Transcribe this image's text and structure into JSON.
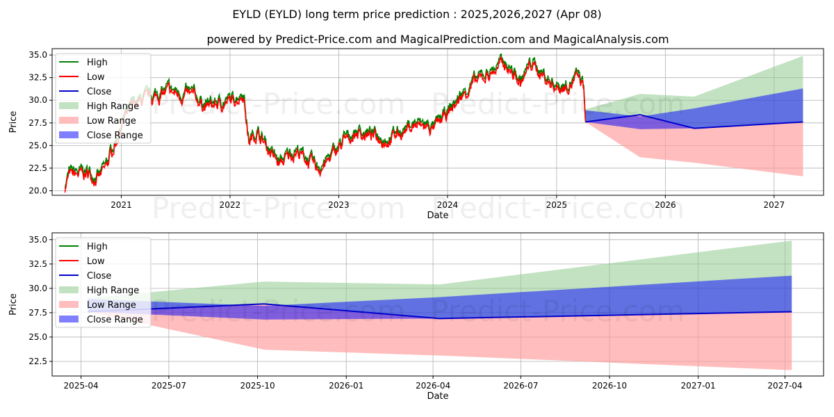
{
  "title": "EYLD (EYLD) long term price prediction : 2025,2026,2027 (Apr 08)",
  "subtitle": "powered by Predict-Price.com and MagicalPrediction.com and MagicalAnalysis.com",
  "watermark": "Predict-Price.com",
  "colors": {
    "high": "#008000",
    "low": "#ff0000",
    "close": "#0000cc",
    "high_range": "#8fca8f",
    "low_range": "#ff9a9a",
    "close_range": "#0000ff"
  },
  "chart_data": [
    {
      "type": "line",
      "title": "",
      "xlabel": "Date",
      "ylabel": "Price",
      "ylim": [
        19.5,
        35.7
      ],
      "xticks": [
        "2021",
        "2022",
        "2023",
        "2024",
        "2025",
        "2026",
        "2027"
      ],
      "yticks": [
        "20.0",
        "22.5",
        "25.0",
        "27.5",
        "30.0",
        "32.5",
        "35.0"
      ],
      "legend": [
        "High",
        "Low",
        "Close",
        "High Range",
        "Low Range",
        "Close Range"
      ],
      "legend_position": "top-left",
      "history_keypoints": [
        [
          "2020-06-25",
          20.5
        ],
        [
          "2020-07-10",
          21.8
        ],
        [
          "2020-09-15",
          22.0
        ],
        [
          "2020-10-20",
          21.5
        ],
        [
          "2020-11-10",
          22.6
        ],
        [
          "2021-01-10",
          28.0
        ],
        [
          "2021-02-15",
          29.6
        ],
        [
          "2021-06-01",
          31.0
        ],
        [
          "2021-09-01",
          30.5
        ],
        [
          "2021-10-15",
          29.4
        ],
        [
          "2022-01-10",
          30.0
        ],
        [
          "2022-02-15",
          31.0
        ],
        [
          "2022-03-05",
          25.5
        ],
        [
          "2022-04-01",
          26.6
        ],
        [
          "2022-06-15",
          23.0
        ],
        [
          "2022-08-10",
          24.6
        ],
        [
          "2022-10-20",
          22.5
        ],
        [
          "2022-11-20",
          23.2
        ],
        [
          "2023-01-15",
          25.4
        ],
        [
          "2023-03-01",
          26.6
        ],
        [
          "2023-06-15",
          25.8
        ],
        [
          "2023-09-10",
          27.4
        ],
        [
          "2023-11-20",
          27.0
        ],
        [
          "2024-01-15",
          29.2
        ],
        [
          "2024-03-15",
          31.6
        ],
        [
          "2024-05-15",
          33.0
        ],
        [
          "2024-07-10",
          34.2
        ],
        [
          "2024-09-01",
          32.0
        ],
        [
          "2024-10-10",
          34.2
        ],
        [
          "2024-12-10",
          32.0
        ],
        [
          "2025-01-20",
          31.5
        ],
        [
          "2025-03-15",
          32.6
        ],
        [
          "2025-04-02",
          31.5
        ],
        [
          "2025-04-08",
          27.6
        ]
      ],
      "forecast": {
        "dates": [
          "2025-04-08",
          "2025-10-08",
          "2026-04-08",
          "2027-04-08"
        ],
        "close": [
          27.6,
          28.4,
          26.9,
          27.6
        ],
        "high_range_upper": [
          29.0,
          30.7,
          30.4,
          34.9
        ],
        "close_range_upper": [
          28.9,
          28.2,
          29.1,
          31.3
        ],
        "close_range_lower": [
          27.6,
          26.8,
          26.9,
          27.6
        ],
        "low_range_lower": [
          27.6,
          23.7,
          23.1,
          21.6
        ]
      }
    },
    {
      "type": "line",
      "title": "",
      "xlabel": "Date",
      "ylabel": "Price",
      "ylim": [
        21.0,
        35.7
      ],
      "xticks": [
        "2025-04",
        "2025-07",
        "2025-10",
        "2026-01",
        "2026-04",
        "2026-07",
        "2026-10",
        "2027-01",
        "2027-04"
      ],
      "yticks": [
        "22.5",
        "25.0",
        "27.5",
        "30.0",
        "32.5",
        "35.0"
      ],
      "legend": [
        "High",
        "Low",
        "Close",
        "High Range",
        "Low Range",
        "Close Range"
      ],
      "legend_position": "top-left"
    }
  ]
}
